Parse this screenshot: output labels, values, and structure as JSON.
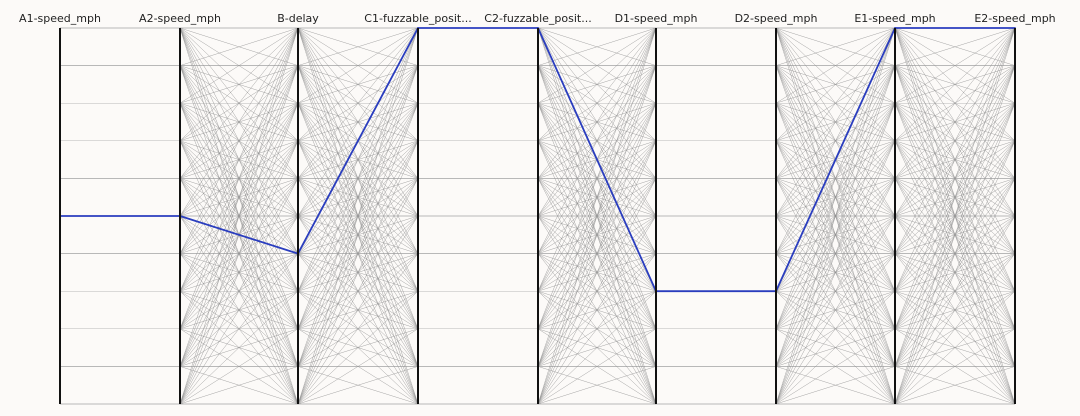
{
  "chart_data": {
    "type": "parallel-coordinates",
    "axes": [
      "A1-speed_mph",
      "A2-speed_mph",
      "B-delay",
      "C1-fuzzable_posit...",
      "C2-fuzzable_posit...",
      "D1-speed_mph",
      "D2-speed_mph",
      "E1-speed_mph",
      "E2-speed_mph"
    ],
    "levels": 11,
    "grid": true,
    "background_lines": {
      "color": "#8f8f8f"
    },
    "highlighted_path": {
      "color": "#2a3dbe",
      "levels": [
        5,
        5,
        6,
        0,
        0,
        7,
        7,
        0,
        0
      ]
    },
    "connections": [
      {
        "from": 1,
        "to": 2,
        "pattern": "all-to-all"
      },
      {
        "from": 2,
        "to": 3,
        "pattern": "all-to-all"
      },
      {
        "from": 3,
        "to": 4,
        "pattern": "none"
      },
      {
        "from": 4,
        "to": 5,
        "pattern": "all-to-all"
      },
      {
        "from": 5,
        "to": 6,
        "pattern": "none"
      },
      {
        "from": 6,
        "to": 7,
        "pattern": "all-to-all"
      },
      {
        "from": 7,
        "to": 8,
        "pattern": "all-to-all"
      }
    ]
  }
}
